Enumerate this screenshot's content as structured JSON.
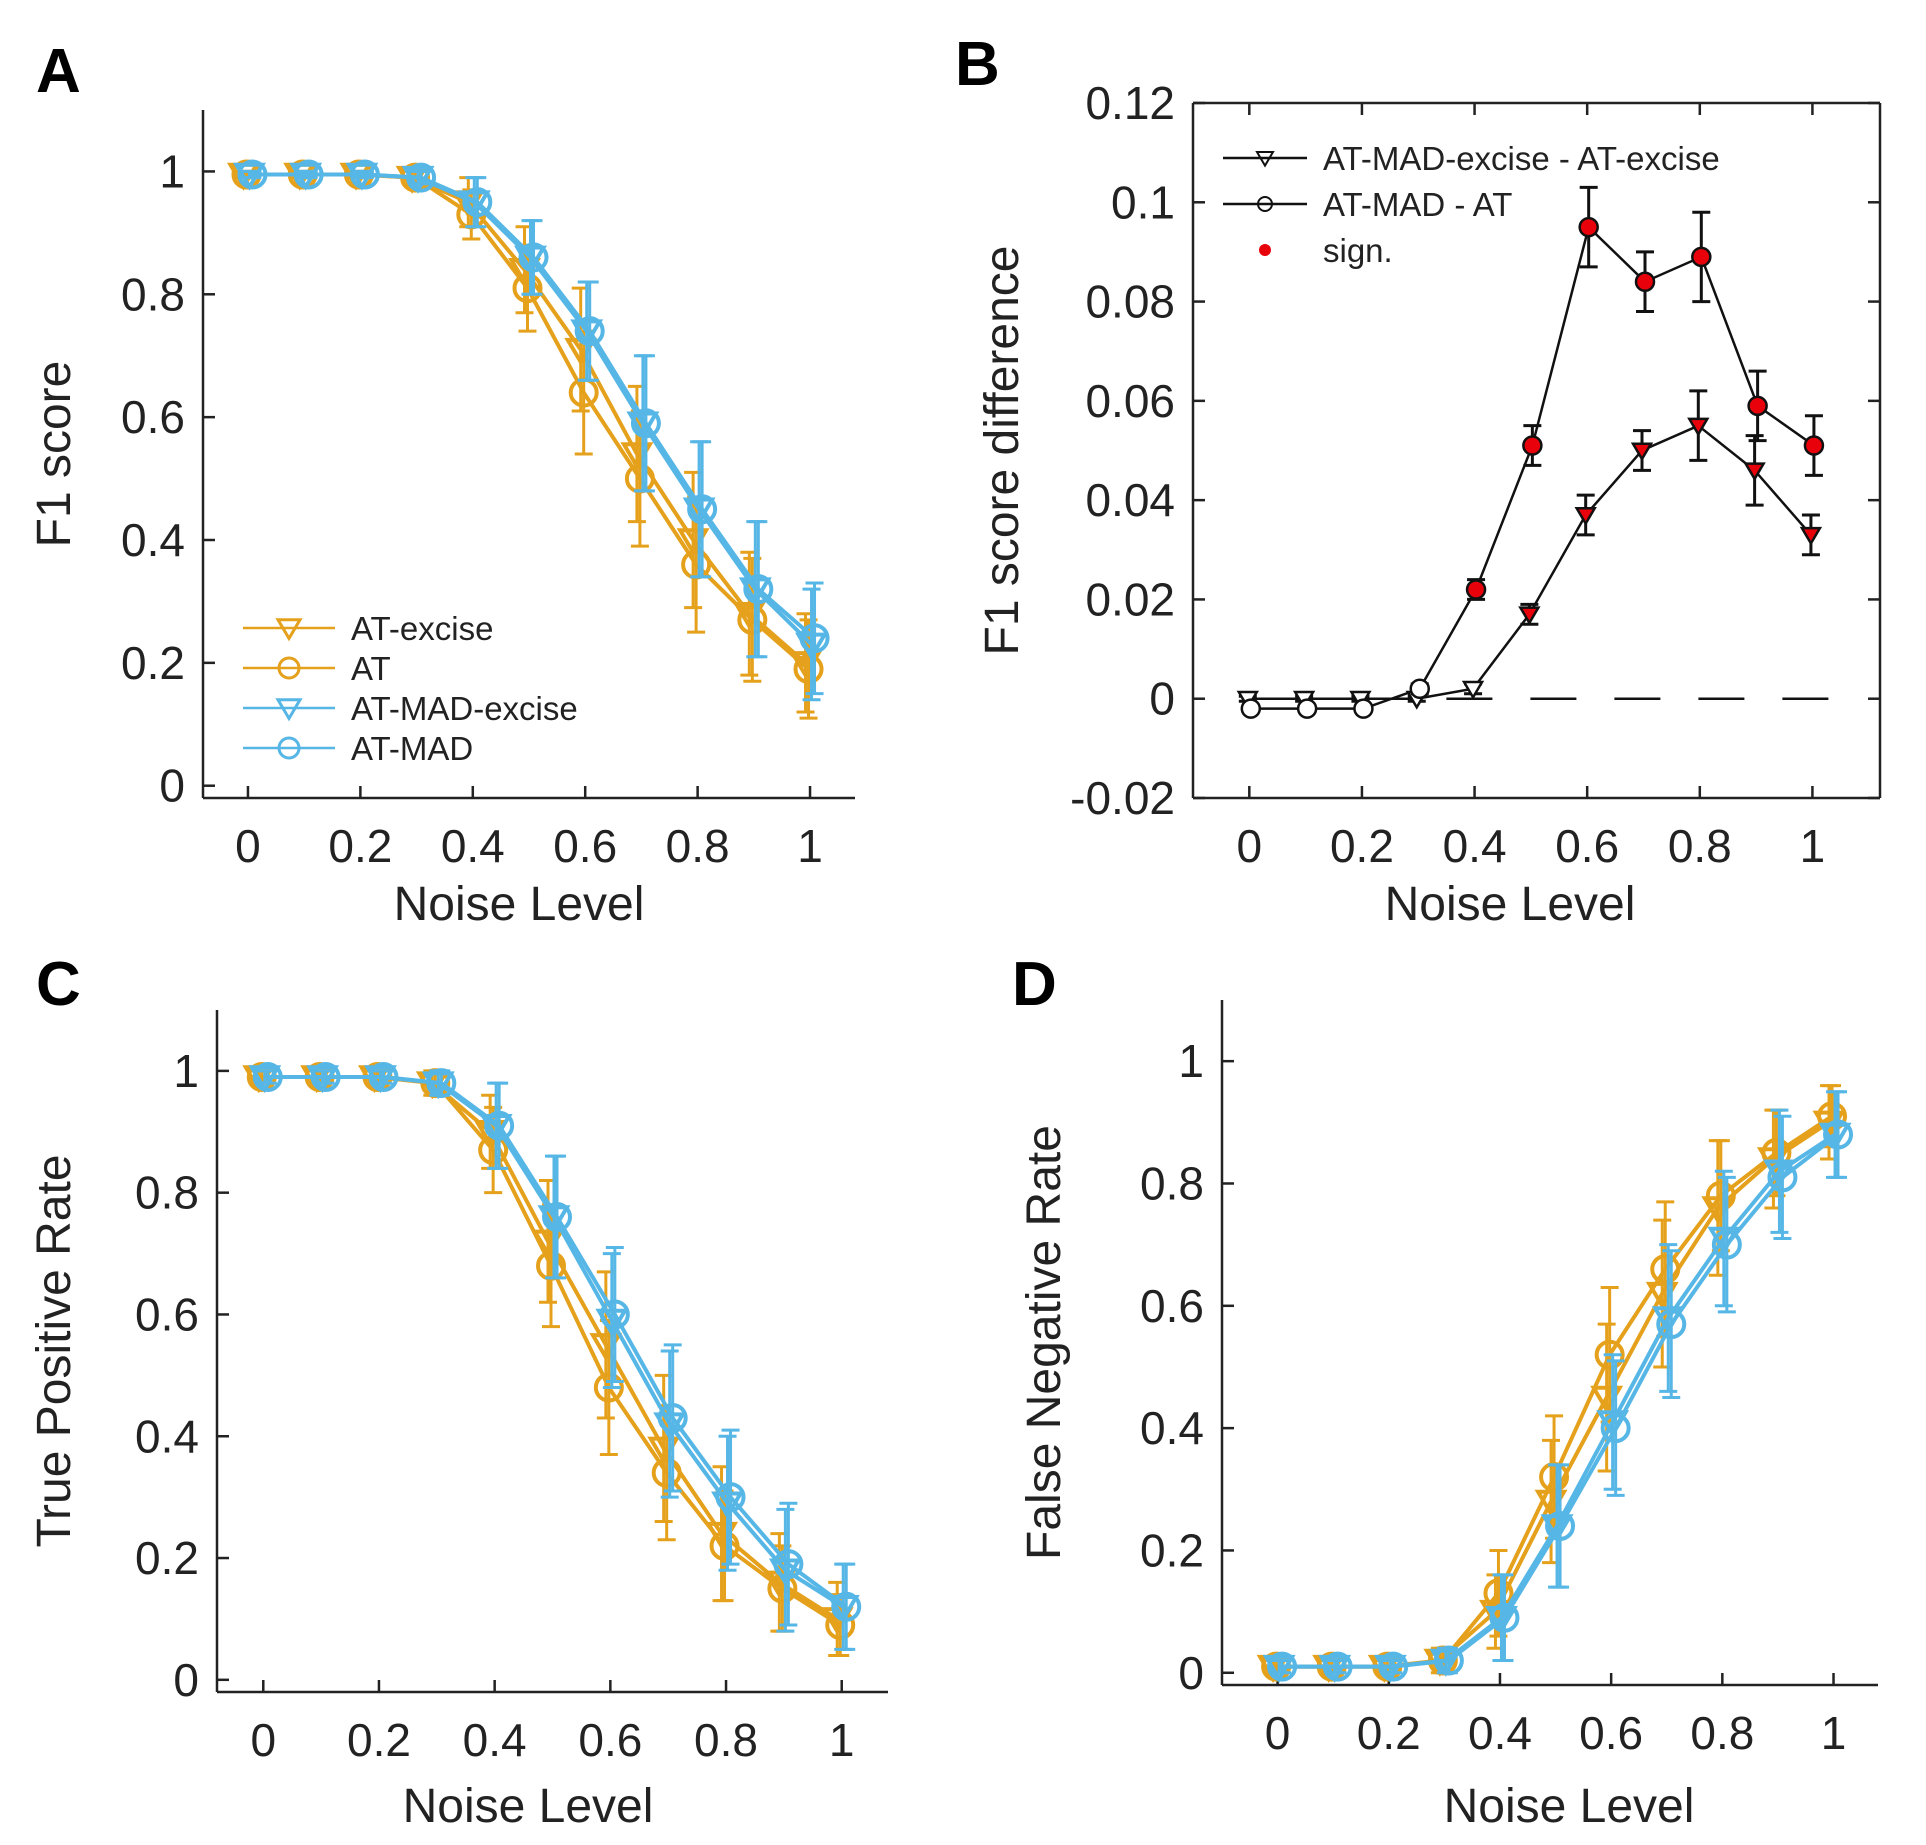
{
  "colors": {
    "orange": "#E5A11C",
    "blue": "#56B6E6",
    "black": "#111111",
    "red": "#E8000B"
  },
  "chart_data": [
    {
      "id": "A",
      "panel": "A",
      "type": "line",
      "xlabel": "Noise Level",
      "ylabel": "F1 score",
      "xlim": [
        -0.08,
        1.08
      ],
      "ylim": [
        -0.02,
        1.1
      ],
      "xticks": [
        {
          "v": 0,
          "t": "0"
        },
        {
          "v": 0.2,
          "t": "0.2"
        },
        {
          "v": 0.4,
          "t": "0.4"
        },
        {
          "v": 0.6,
          "t": "0.6"
        },
        {
          "v": 0.8,
          "t": "0.8"
        },
        {
          "v": 1,
          "t": "1"
        }
      ],
      "yticks": [
        {
          "v": 0,
          "t": "0"
        },
        {
          "v": 0.2,
          "t": "0.2"
        },
        {
          "v": 0.4,
          "t": "0.4"
        },
        {
          "v": 0.6,
          "t": "0.6"
        },
        {
          "v": 0.8,
          "t": "0.8"
        },
        {
          "v": 1,
          "t": "1"
        }
      ],
      "legend_position": "bottom-left",
      "x": [
        0,
        0.1,
        0.2,
        0.3,
        0.4,
        0.5,
        0.6,
        0.7,
        0.8,
        0.9,
        1.0
      ],
      "series": [
        {
          "name": "AT-excise",
          "color": "#E5A11C",
          "marker": "tri",
          "values": [
            0.995,
            0.995,
            0.995,
            0.99,
            0.95,
            0.84,
            0.71,
            0.54,
            0.4,
            0.28,
            0.2
          ],
          "errors": [
            0.005,
            0.005,
            0.005,
            0.01,
            0.04,
            0.07,
            0.1,
            0.11,
            0.11,
            0.1,
            0.08
          ]
        },
        {
          "name": "AT",
          "color": "#E5A11C",
          "marker": "circle",
          "values": [
            0.995,
            0.995,
            0.995,
            0.99,
            0.93,
            0.81,
            0.64,
            0.5,
            0.36,
            0.27,
            0.19
          ],
          "errors": [
            0.005,
            0.005,
            0.005,
            0.01,
            0.04,
            0.07,
            0.1,
            0.11,
            0.11,
            0.1,
            0.08
          ]
        },
        {
          "name": "AT-MAD-excise",
          "color": "#56B6E6",
          "marker": "tri",
          "values": [
            0.995,
            0.995,
            0.995,
            0.99,
            0.95,
            0.86,
            0.74,
            0.59,
            0.45,
            0.32,
            0.23
          ],
          "errors": [
            0.005,
            0.005,
            0.005,
            0.01,
            0.04,
            0.06,
            0.08,
            0.11,
            0.11,
            0.11,
            0.09
          ]
        },
        {
          "name": "AT-MAD",
          "color": "#56B6E6",
          "marker": "circle",
          "values": [
            0.995,
            0.995,
            0.995,
            0.99,
            0.95,
            0.86,
            0.74,
            0.59,
            0.45,
            0.32,
            0.24
          ],
          "errors": [
            0.005,
            0.005,
            0.005,
            0.01,
            0.04,
            0.06,
            0.08,
            0.11,
            0.11,
            0.11,
            0.09
          ]
        }
      ]
    },
    {
      "id": "B",
      "panel": "B",
      "type": "line",
      "xlabel": "Noise Level",
      "ylabel": "F1 score difference",
      "xlim": [
        -0.1,
        1.12
      ],
      "ylim": [
        -0.02,
        0.12
      ],
      "boxed": true,
      "zero_line": true,
      "xticks": [
        {
          "v": 0,
          "t": "0"
        },
        {
          "v": 0.2,
          "t": "0.2"
        },
        {
          "v": 0.4,
          "t": "0.4"
        },
        {
          "v": 0.6,
          "t": "0.6"
        },
        {
          "v": 0.8,
          "t": "0.8"
        },
        {
          "v": 1,
          "t": "1"
        }
      ],
      "yticks": [
        {
          "v": -0.02,
          "t": "-0.02"
        },
        {
          "v": 0,
          "t": "0"
        },
        {
          "v": 0.02,
          "t": "0.02"
        },
        {
          "v": 0.04,
          "t": "0.04"
        },
        {
          "v": 0.06,
          "t": "0.06"
        },
        {
          "v": 0.08,
          "t": "0.08"
        },
        {
          "v": 0.1,
          "t": "0.1"
        },
        {
          "v": 0.12,
          "t": "0.12"
        }
      ],
      "legend_position": "top-left",
      "x": [
        0,
        0.1,
        0.2,
        0.3,
        0.4,
        0.5,
        0.6,
        0.7,
        0.8,
        0.9,
        1.0
      ],
      "series": [
        {
          "name": "AT-MAD-excise - AT-excise",
          "color": "#111111",
          "marker": "tri",
          "values": [
            0.0,
            0.0,
            0.0,
            0.0,
            0.002,
            0.017,
            0.037,
            0.05,
            0.055,
            0.046,
            0.033
          ],
          "errors": [
            0.0005,
            0.0005,
            0.0005,
            0.0005,
            0.001,
            0.002,
            0.004,
            0.004,
            0.007,
            0.007,
            0.004
          ],
          "significant": [
            false,
            false,
            false,
            false,
            false,
            true,
            true,
            true,
            true,
            true,
            true
          ]
        },
        {
          "name": "AT-MAD - AT",
          "color": "#111111",
          "marker": "circle",
          "values": [
            -0.002,
            -0.002,
            -0.002,
            0.002,
            0.022,
            0.051,
            0.095,
            0.084,
            0.089,
            0.059,
            0.051
          ],
          "errors": [
            0.0005,
            0.0005,
            0.0005,
            0.001,
            0.002,
            0.004,
            0.008,
            0.006,
            0.009,
            0.007,
            0.006
          ],
          "significant": [
            false,
            false,
            false,
            false,
            true,
            true,
            true,
            true,
            true,
            true,
            true
          ]
        }
      ],
      "legend_extra": "sign."
    },
    {
      "id": "C",
      "panel": "C",
      "type": "line",
      "xlabel": "Noise Level",
      "ylabel": "True Positive Rate",
      "xlim": [
        -0.08,
        1.08
      ],
      "ylim": [
        -0.02,
        1.1
      ],
      "xticks": [
        {
          "v": 0,
          "t": "0"
        },
        {
          "v": 0.2,
          "t": "0.2"
        },
        {
          "v": 0.4,
          "t": "0.4"
        },
        {
          "v": 0.6,
          "t": "0.6"
        },
        {
          "v": 0.8,
          "t": "0.8"
        },
        {
          "v": 1,
          "t": "1"
        }
      ],
      "yticks": [
        {
          "v": 0,
          "t": "0"
        },
        {
          "v": 0.2,
          "t": "0.2"
        },
        {
          "v": 0.4,
          "t": "0.4"
        },
        {
          "v": 0.6,
          "t": "0.6"
        },
        {
          "v": 0.8,
          "t": "0.8"
        },
        {
          "v": 1,
          "t": "1"
        }
      ],
      "x": [
        0,
        0.1,
        0.2,
        0.3,
        0.4,
        0.5,
        0.6,
        0.7,
        0.8,
        0.9,
        1.0
      ],
      "series": [
        {
          "name": "AT-excise",
          "color": "#E5A11C",
          "marker": "tri",
          "values": [
            0.99,
            0.99,
            0.99,
            0.98,
            0.9,
            0.72,
            0.55,
            0.38,
            0.24,
            0.16,
            0.1
          ],
          "errors": [
            0.01,
            0.01,
            0.01,
            0.02,
            0.06,
            0.1,
            0.12,
            0.12,
            0.11,
            0.08,
            0.06
          ]
        },
        {
          "name": "AT",
          "color": "#E5A11C",
          "marker": "circle",
          "values": [
            0.99,
            0.99,
            0.99,
            0.98,
            0.87,
            0.68,
            0.48,
            0.34,
            0.22,
            0.15,
            0.09
          ],
          "errors": [
            0.01,
            0.01,
            0.01,
            0.02,
            0.07,
            0.1,
            0.11,
            0.11,
            0.09,
            0.07,
            0.05
          ]
        },
        {
          "name": "AT-MAD-excise",
          "color": "#56B6E6",
          "marker": "tri",
          "values": [
            0.99,
            0.99,
            0.99,
            0.98,
            0.91,
            0.76,
            0.59,
            0.42,
            0.29,
            0.18,
            0.12
          ],
          "errors": [
            0.01,
            0.01,
            0.01,
            0.02,
            0.07,
            0.1,
            0.11,
            0.12,
            0.11,
            0.1,
            0.07
          ]
        },
        {
          "name": "AT-MAD",
          "color": "#56B6E6",
          "marker": "circle",
          "values": [
            0.99,
            0.99,
            0.99,
            0.98,
            0.91,
            0.76,
            0.6,
            0.43,
            0.3,
            0.19,
            0.12
          ],
          "errors": [
            0.01,
            0.01,
            0.01,
            0.02,
            0.07,
            0.1,
            0.11,
            0.12,
            0.11,
            0.1,
            0.07
          ]
        }
      ]
    },
    {
      "id": "D",
      "panel": "D",
      "type": "line",
      "xlabel": "Noise Level",
      "ylabel": "False Negative Rate",
      "xlim": [
        -0.1,
        1.08
      ],
      "ylim": [
        -0.02,
        1.1
      ],
      "xticks": [
        {
          "v": 0,
          "t": "0"
        },
        {
          "v": 0.2,
          "t": "0.2"
        },
        {
          "v": 0.4,
          "t": "0.4"
        },
        {
          "v": 0.6,
          "t": "0.6"
        },
        {
          "v": 0.8,
          "t": "0.8"
        },
        {
          "v": 1,
          "t": "1"
        }
      ],
      "yticks": [
        {
          "v": 0,
          "t": "0"
        },
        {
          "v": 0.2,
          "t": "0.2"
        },
        {
          "v": 0.4,
          "t": "0.4"
        },
        {
          "v": 0.6,
          "t": "0.6"
        },
        {
          "v": 0.8,
          "t": "0.8"
        },
        {
          "v": 1,
          "t": "1"
        }
      ],
      "x": [
        0,
        0.1,
        0.2,
        0.3,
        0.4,
        0.5,
        0.6,
        0.7,
        0.8,
        0.9,
        1.0
      ],
      "series": [
        {
          "name": "AT-excise",
          "color": "#E5A11C",
          "marker": "tri",
          "values": [
            0.01,
            0.01,
            0.01,
            0.02,
            0.1,
            0.28,
            0.45,
            0.62,
            0.76,
            0.84,
            0.9
          ],
          "errors": [
            0.01,
            0.01,
            0.01,
            0.02,
            0.06,
            0.1,
            0.12,
            0.12,
            0.11,
            0.08,
            0.06
          ]
        },
        {
          "name": "AT",
          "color": "#E5A11C",
          "marker": "circle",
          "values": [
            0.01,
            0.01,
            0.01,
            0.02,
            0.13,
            0.32,
            0.52,
            0.66,
            0.78,
            0.85,
            0.91
          ],
          "errors": [
            0.01,
            0.01,
            0.01,
            0.02,
            0.07,
            0.1,
            0.11,
            0.11,
            0.09,
            0.07,
            0.05
          ]
        },
        {
          "name": "AT-MAD-excise",
          "color": "#56B6E6",
          "marker": "tri",
          "values": [
            0.01,
            0.01,
            0.01,
            0.02,
            0.09,
            0.24,
            0.41,
            0.58,
            0.71,
            0.82,
            0.88
          ],
          "errors": [
            0.01,
            0.01,
            0.01,
            0.02,
            0.07,
            0.1,
            0.11,
            0.12,
            0.11,
            0.1,
            0.07
          ]
        },
        {
          "name": "AT-MAD",
          "color": "#56B6E6",
          "marker": "circle",
          "values": [
            0.01,
            0.01,
            0.01,
            0.02,
            0.09,
            0.24,
            0.4,
            0.57,
            0.7,
            0.81,
            0.88
          ],
          "errors": [
            0.01,
            0.01,
            0.01,
            0.02,
            0.07,
            0.1,
            0.11,
            0.12,
            0.11,
            0.1,
            0.07
          ]
        }
      ]
    }
  ]
}
